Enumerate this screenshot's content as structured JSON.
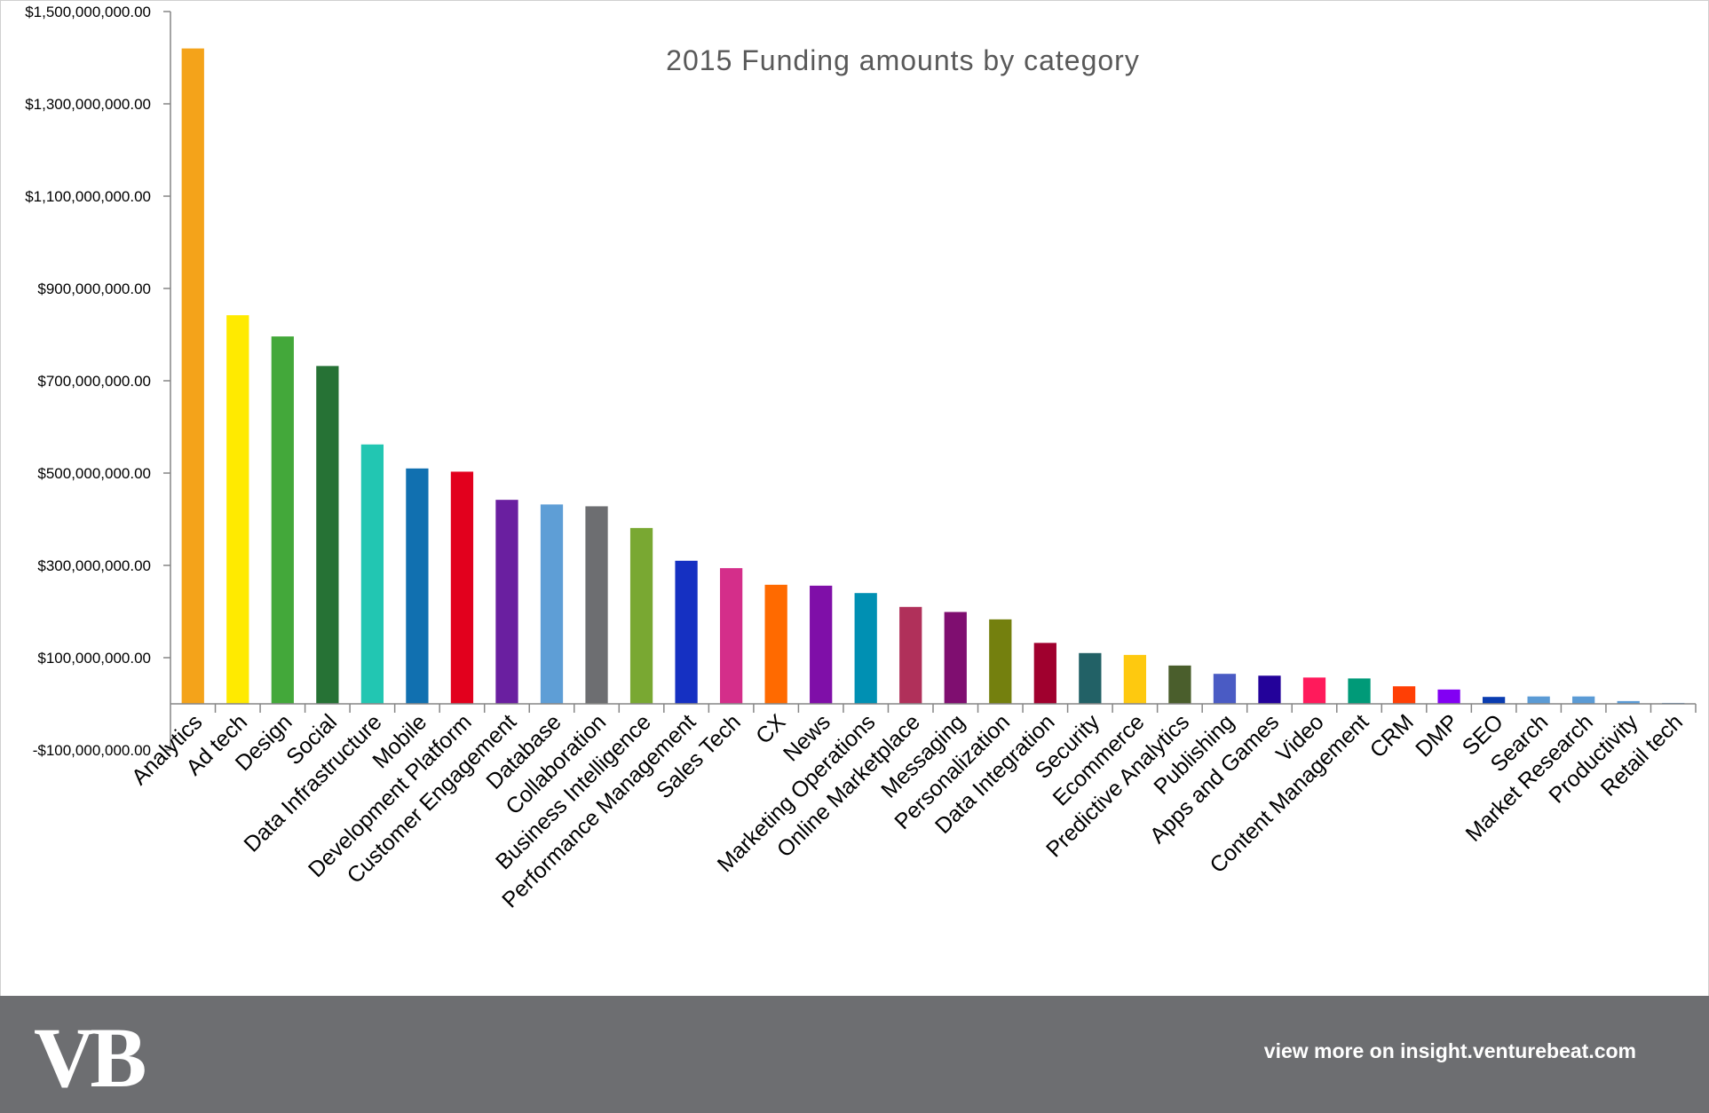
{
  "chart_data": {
    "type": "bar",
    "title": "2015 Funding amounts by category",
    "xlabel": "",
    "ylabel": "",
    "ylim": [
      -100000000,
      1500000000
    ],
    "y_ticks": [
      -100000000,
      100000000,
      300000000,
      500000000,
      700000000,
      900000000,
      1100000000,
      1300000000,
      1500000000
    ],
    "y_tick_labels": [
      "-$100,000,000.00",
      "$100,000,000.00",
      "$300,000,000.00",
      "$500,000,000.00",
      "$700,000,000.00",
      "$900,000,000.00",
      "$1,100,000,000.00",
      "$1,300,000,000.00",
      "$1,500,000,000.00"
    ],
    "categories": [
      "Analytics",
      "Ad tech",
      "Design",
      "Social",
      "Data Infrastructure",
      "Mobile",
      "Development Platform",
      "Customer Engagement",
      "Database",
      "Collaboration",
      "Business Intelligence",
      "Performance Management",
      "Sales Tech",
      "CX",
      "News",
      "Marketing Operations",
      "Online Marketplace",
      "Messaging",
      "Personalization",
      "Data Integration",
      "Security",
      "Ecommerce",
      "Predictive Analytics",
      "Publishing",
      "Apps and Games",
      "Video",
      "Content Management",
      "CRM",
      "DMP",
      "SEO",
      "Search",
      "Market Research",
      "Productivity",
      "Retail tech"
    ],
    "values": [
      1420000000,
      842000000,
      796000000,
      732000000,
      562000000,
      510000000,
      503000000,
      442000000,
      432000000,
      428000000,
      381000000,
      310000000,
      294000000,
      258000000,
      256000000,
      240000000,
      210000000,
      199000000,
      183000000,
      132000000,
      110000000,
      106000000,
      83000000,
      65000000,
      61000000,
      57000000,
      55000000,
      38000000,
      31000000,
      15000000,
      16000000,
      16000000,
      6000000,
      2000000
    ],
    "colors": [
      "#f4a31a",
      "#ffea00",
      "#43a83a",
      "#267235",
      "#22c6b2",
      "#1170b0",
      "#e2001d",
      "#6a1fa0",
      "#5e9ed6",
      "#6d6e71",
      "#79a832",
      "#1530c2",
      "#d42e8a",
      "#ff6a00",
      "#7f0fa8",
      "#0090b3",
      "#b0305a",
      "#7f0e70",
      "#74800e",
      "#a0002e",
      "#226166",
      "#fec90f",
      "#4a5e2c",
      "#4a5bc4",
      "#23029a",
      "#ff1a5b",
      "#009a78",
      "#ff3f05",
      "#8200f3",
      "#0a3cb0",
      "#5b9bd5",
      "#5b9bd5",
      "#5b9bd5",
      "#5b9bd5"
    ]
  },
  "footer": {
    "logo": "VB",
    "link_text": "view more on insight.venturebeat.com"
  }
}
